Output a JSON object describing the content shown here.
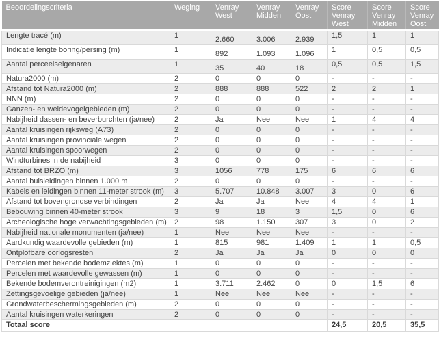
{
  "table": {
    "headers": [
      "Beoordelingscriteria",
      "Weging",
      "Venray West",
      "Venray Midden",
      "Venray Oost",
      "Score Venray West",
      "Score Venray Midden",
      "Score Venray Oost"
    ],
    "rows": [
      {
        "cells": [
          "Lengte tracé (m)",
          "1",
          "2.660",
          "3.006",
          "2.939",
          "1,5",
          "1",
          "1"
        ],
        "tall": true
      },
      {
        "cells": [
          "Indicatie lengte boring/persing (m)",
          "1",
          "892",
          "1.093",
          "1.096",
          "1",
          "0,5",
          "0,5"
        ],
        "tall": true
      },
      {
        "cells": [
          "Aantal perceelseigenaren",
          "1",
          "35",
          "40",
          "18",
          "0,5",
          "0,5",
          "1,5"
        ],
        "tall": true
      },
      {
        "cells": [
          "Natura2000 (m)",
          "2",
          "0",
          "0",
          "0",
          "-",
          "-",
          "-"
        ]
      },
      {
        "cells": [
          "Afstand tot Natura2000 (m)",
          "2",
          "888",
          "888",
          "522",
          "2",
          "2",
          "1"
        ]
      },
      {
        "cells": [
          "NNN (m)",
          "2",
          "0",
          "0",
          "0",
          "-",
          "-",
          "-"
        ]
      },
      {
        "cells": [
          "Ganzen- en weidevogelgebieden (m)",
          "2",
          "0",
          "0",
          "0",
          "-",
          "-",
          "-"
        ]
      },
      {
        "cells": [
          "Nabijheid dassen- en beverburchten (ja/nee)",
          "2",
          "Ja",
          "Nee",
          "Nee",
          "1",
          "4",
          "4"
        ]
      },
      {
        "cells": [
          "Aantal kruisingen rijksweg (A73)",
          "2",
          "0",
          "0",
          "0",
          "-",
          "-",
          "-"
        ]
      },
      {
        "cells": [
          "Aantal kruisingen provinciale wegen",
          "2",
          "0",
          "0",
          "0",
          "-",
          "-",
          "-"
        ]
      },
      {
        "cells": [
          "Aantal kruisingen spoorwegen",
          "2",
          "0",
          "0",
          "0",
          "-",
          "-",
          "-"
        ]
      },
      {
        "cells": [
          "Windturbines in de nabijheid",
          "3",
          "0",
          "0",
          "0",
          "-",
          "-",
          "-"
        ]
      },
      {
        "cells": [
          "Afstand tot BRZO (m)",
          "3",
          "1056",
          "778",
          "175",
          "6",
          "6",
          "6"
        ]
      },
      {
        "cells": [
          "Aantal buisleidingen binnen 1.000 m",
          "2",
          "0",
          "0",
          "0",
          "-",
          "-",
          "-"
        ]
      },
      {
        "cells": [
          "Kabels en leidingen binnen 11-meter strook (m)",
          "3",
          "5.707",
          "10.848",
          "3.007",
          "3",
          "0",
          "6"
        ]
      },
      {
        "cells": [
          "Afstand tot bovengrondse verbindingen",
          "2",
          "Ja",
          "Ja",
          "Nee",
          "4",
          "4",
          "1"
        ]
      },
      {
        "cells": [
          "Bebouwing binnen 40-meter strook",
          "3",
          "9",
          "18",
          "3",
          "1,5",
          "0",
          "6"
        ]
      },
      {
        "cells": [
          "Archeologische hoge verwachtingsgebieden (m)",
          "2",
          "98",
          "1.150",
          "307",
          "3",
          "0",
          "2"
        ]
      },
      {
        "cells": [
          "Nabijheid nationale monumenten (ja/nee)",
          "1",
          "Nee",
          "Nee",
          "Nee",
          "-",
          "-",
          "-"
        ]
      },
      {
        "cells": [
          "Aardkundig waardevolle gebieden (m)",
          "1",
          "815",
          "981",
          "1.409",
          "1",
          "1",
          "0,5"
        ]
      },
      {
        "cells": [
          "Ontplofbare oorlogsresten",
          "2",
          "Ja",
          "Ja",
          "Ja",
          "0",
          "0",
          "0"
        ]
      },
      {
        "cells": [
          "Percelen met bekende bodemziektes (m)",
          "1",
          "0",
          "0",
          "0",
          "-",
          "-",
          "-"
        ]
      },
      {
        "cells": [
          "Percelen met waardevolle gewassen (m)",
          "1",
          "0",
          "0",
          "0",
          "-",
          "-",
          "-"
        ]
      },
      {
        "cells": [
          "Bekende bodemverontreinigingen (m2)",
          "1",
          "3.711",
          "2.462",
          "0",
          "0",
          "1,5",
          "6"
        ]
      },
      {
        "cells": [
          "Zettingsgevoelige gebieden (ja/nee)",
          "1",
          "Nee",
          "Nee",
          "Nee",
          "-",
          "-",
          "-"
        ]
      },
      {
        "cells": [
          "Grondwaterbeschermingsgebieden (m)",
          "2",
          "0",
          "0",
          "0",
          "-",
          "-",
          "-"
        ]
      },
      {
        "cells": [
          "Aantal kruisingen waterkeringen",
          "2",
          "0",
          "0",
          "0",
          "-",
          "-",
          "-"
        ]
      },
      {
        "cells": [
          "Totaal score",
          "",
          "",
          "",
          "",
          "24,5",
          "20,5",
          "35,5"
        ],
        "total": true
      }
    ]
  },
  "colors": {
    "header_bg": "#a8a8a8",
    "header_text": "#ffffff",
    "stripe_bg": "#ececec",
    "row_bg": "#ffffff",
    "border": "#d9d9d9",
    "body_text": "#444444"
  }
}
